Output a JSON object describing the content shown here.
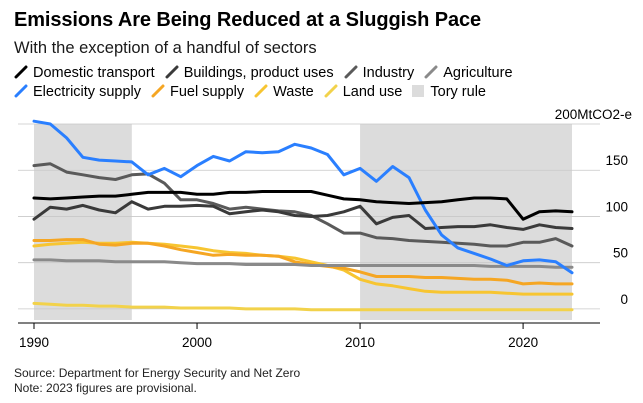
{
  "header": {
    "title": "Emissions Are Being Reduced at a Sluggish Pace",
    "subtitle": "With the exception of a handful of sectors"
  },
  "legend": [
    {
      "label": "Domestic transport",
      "color": "#000000",
      "type": "line"
    },
    {
      "label": "Buildings, product uses",
      "color": "#3a3a3a",
      "type": "line"
    },
    {
      "label": "Industry",
      "color": "#5a5a5a",
      "type": "line"
    },
    {
      "label": "Agriculture",
      "color": "#8a8a8a",
      "type": "line"
    },
    {
      "label": "Electricity supply",
      "color": "#2a7fff",
      "type": "line"
    },
    {
      "label": "Fuel supply",
      "color": "#f5a623",
      "type": "line"
    },
    {
      "label": "Waste",
      "color": "#f7c531",
      "type": "line"
    },
    {
      "label": "Land use",
      "color": "#f2d24b",
      "type": "line"
    },
    {
      "label": "Tory rule",
      "color": "#dcdcdc",
      "type": "area"
    }
  ],
  "source": {
    "line1": "Source: Department for Energy Security and Net Zero",
    "line2": "Note: 2023 figures are provisional."
  },
  "chart_data": {
    "type": "line",
    "title": "Emissions Are Being Reduced at a Sluggish Pace",
    "ylabel": "MtCO2-e",
    "unit_label": "200MtCO2-e",
    "xlim": [
      1990,
      2023
    ],
    "ylim": [
      -12,
      200
    ],
    "x_ticks": [
      1990,
      2000,
      2010,
      2020
    ],
    "y_ticks": [
      0,
      50,
      100,
      150
    ],
    "shaded_ranges": [
      {
        "label": "Tory rule",
        "from": 1990,
        "to": 1996
      },
      {
        "label": "Tory rule",
        "from": 2010,
        "to": 2023
      }
    ],
    "x": [
      1990,
      1991,
      1992,
      1993,
      1994,
      1995,
      1996,
      1997,
      1998,
      1999,
      2000,
      2001,
      2002,
      2003,
      2004,
      2005,
      2006,
      2007,
      2008,
      2009,
      2010,
      2011,
      2012,
      2013,
      2014,
      2015,
      2016,
      2017,
      2018,
      2019,
      2020,
      2021,
      2022,
      2023
    ],
    "series": [
      {
        "name": "Domestic transport",
        "color": "#000000",
        "values": [
          120,
          119,
          120,
          121,
          122,
          122,
          124,
          126,
          126,
          126,
          124,
          124,
          126,
          126,
          127,
          127,
          127,
          127,
          123,
          119,
          118,
          116,
          115,
          114,
          115,
          116,
          118,
          120,
          120,
          119,
          97,
          105,
          106,
          105
        ]
      },
      {
        "name": "Buildings, product uses",
        "color": "#3a3a3a",
        "values": [
          97,
          110,
          108,
          112,
          107,
          104,
          116,
          108,
          111,
          111,
          112,
          111,
          103,
          105,
          107,
          105,
          101,
          100,
          101,
          105,
          111,
          92,
          99,
          101,
          87,
          88,
          89,
          89,
          91,
          88,
          86,
          91,
          88,
          87
        ]
      },
      {
        "name": "Industry",
        "color": "#5a5a5a",
        "values": [
          155,
          157,
          148,
          145,
          142,
          140,
          145,
          146,
          136,
          118,
          118,
          114,
          108,
          110,
          108,
          106,
          105,
          101,
          92,
          82,
          82,
          77,
          76,
          74,
          73,
          72,
          71,
          70,
          68,
          68,
          72,
          72,
          76,
          68
        ]
      },
      {
        "name": "Agriculture",
        "color": "#8a8a8a",
        "values": [
          53,
          53,
          52,
          52,
          52,
          51,
          51,
          51,
          51,
          50,
          49,
          49,
          49,
          48,
          48,
          48,
          48,
          47,
          47,
          47,
          47,
          47,
          47,
          47,
          47,
          47,
          47,
          47,
          46,
          46,
          46,
          46,
          45,
          45
        ]
      },
      {
        "name": "Electricity supply",
        "color": "#2a7fff",
        "values": [
          203,
          200,
          185,
          164,
          161,
          160,
          159,
          145,
          152,
          143,
          155,
          165,
          160,
          170,
          169,
          170,
          178,
          174,
          167,
          145,
          152,
          138,
          154,
          142,
          107,
          80,
          66,
          60,
          54,
          47,
          52,
          53,
          51,
          39
        ]
      },
      {
        "name": "Fuel supply",
        "color": "#f5a623",
        "values": [
          74,
          74,
          75,
          75,
          70,
          69,
          71,
          71,
          68,
          64,
          61,
          58,
          59,
          58,
          58,
          57,
          51,
          48,
          46,
          44,
          40,
          35,
          35,
          35,
          34,
          34,
          33,
          32,
          32,
          31,
          27,
          28,
          27,
          27
        ]
      },
      {
        "name": "Waste",
        "color": "#f7c531",
        "values": [
          68,
          70,
          71,
          72,
          71,
          71,
          72,
          71,
          70,
          68,
          66,
          63,
          61,
          60,
          58,
          57,
          55,
          51,
          47,
          42,
          32,
          27,
          25,
          22,
          19,
          18,
          18,
          18,
          18,
          17,
          16,
          16,
          16,
          16
        ]
      },
      {
        "name": "Land use",
        "color": "#f2d24b",
        "values": [
          6,
          5,
          4,
          4,
          3,
          3,
          2,
          2,
          2,
          1,
          1,
          1,
          1,
          0,
          0,
          0,
          0,
          -1,
          -1,
          -1,
          -1,
          -1,
          -1,
          -1,
          -1,
          -1,
          -1,
          -1,
          -1,
          -1,
          -1,
          -1,
          -1,
          -1
        ]
      }
    ]
  }
}
